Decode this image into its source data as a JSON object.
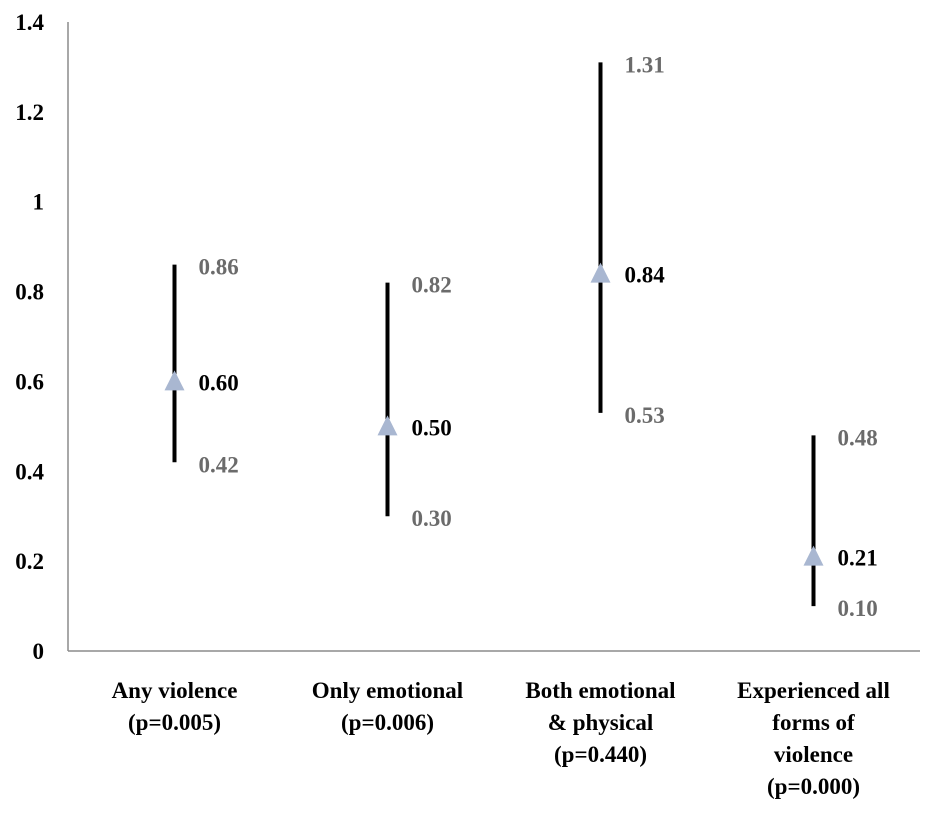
{
  "chart_data": {
    "type": "scatter",
    "title": "",
    "xlabel": "",
    "ylabel": "",
    "ylim": [
      0,
      1.4
    ],
    "y_ticks": [
      "0",
      "0.2",
      "0.4",
      "0.6",
      "0.8",
      "1",
      "1.2",
      "1.4"
    ],
    "grid": false,
    "legend": "none",
    "categories": [
      {
        "lines": [
          "Any violence",
          "(p=0.005)"
        ]
      },
      {
        "lines": [
          "Only emotional",
          "(p=0.006)"
        ]
      },
      {
        "lines": [
          "Both emotional",
          "& physical",
          "(p=0.440)"
        ]
      },
      {
        "lines": [
          "Experienced all",
          "forms of",
          "violence",
          "(p=0.000)"
        ]
      }
    ],
    "series": [
      {
        "estimate": [
          0.6,
          0.5,
          0.84,
          0.21
        ],
        "lower": [
          0.42,
          0.3,
          0.53,
          0.1
        ],
        "upper": [
          0.86,
          0.82,
          1.31,
          0.48
        ],
        "estimate_labels": [
          "0.60",
          "0.50",
          "0.84",
          "0.21"
        ],
        "lower_labels": [
          "0.42",
          "0.30",
          "0.53",
          "0.10"
        ],
        "upper_labels": [
          "0.86",
          "0.82",
          "1.31",
          "0.48"
        ]
      }
    ],
    "colors": {
      "marker": "#a9b7d1",
      "ci_line": "#000000",
      "estimate_label": "#000000",
      "bound_label": "#6b6b6b",
      "axis": "#8c8c8c"
    }
  }
}
